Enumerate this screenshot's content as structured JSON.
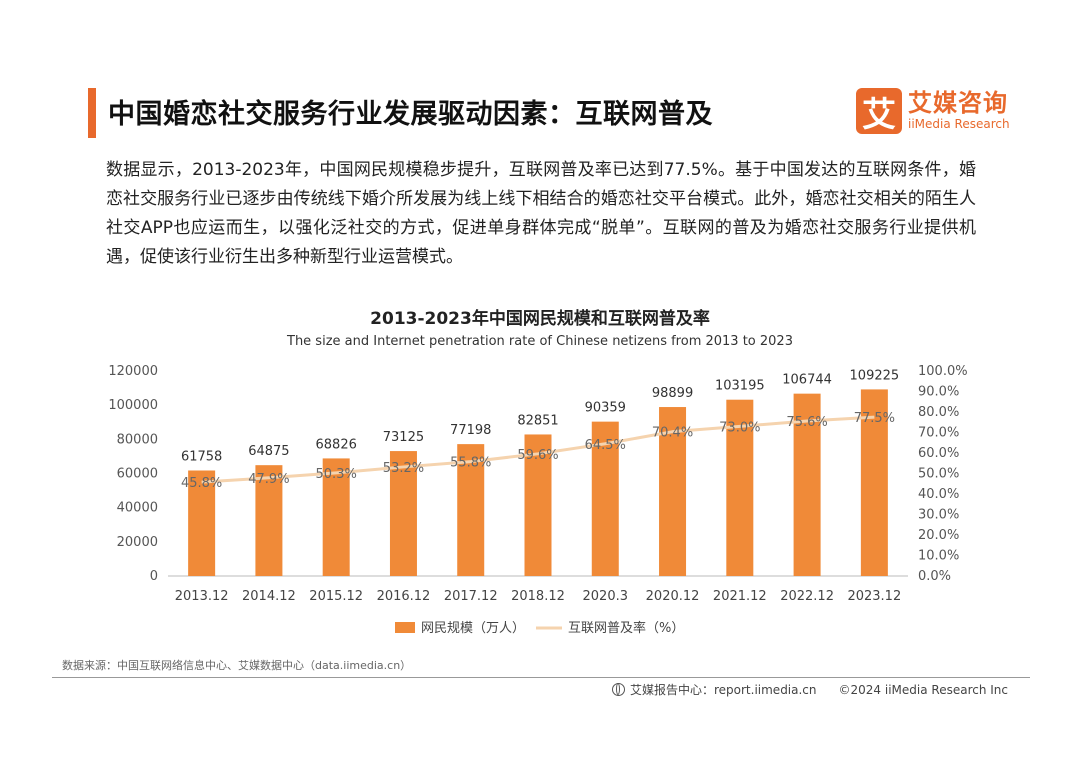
{
  "header": {
    "title": "中国婚恋社交服务行业发展驱动因素：互联网普及",
    "logo_mark": "艾",
    "logo_cn": "艾媒咨询",
    "logo_en": "iiMedia Research"
  },
  "body_text": "数据显示，2013-2023年，中国网民规模稳步提升，互联网普及率已达到77.5%。基于中国发达的互联网条件，婚恋社交服务行业已逐步由传统线下婚介所发展为线上线下相结合的婚恋社交平台模式。此外，婚恋社交相关的陌生人社交APP也应运而生，以强化泛社交的方式，促进单身群体完成“脱单”。互联网的普及为婚恋社交服务行业提供机遇，促使该行业衍生出多种新型行业运营模式。",
  "chart_data": {
    "type": "bar",
    "title": "2013-2023年中国网民规模和互联网普及率",
    "subtitle": "The size and Internet penetration rate of Chinese netizens from 2013 to 2023",
    "categories": [
      "2013.12",
      "2014.12",
      "2015.12",
      "2016.12",
      "2017.12",
      "2018.12",
      "2020.3",
      "2020.12",
      "2021.12",
      "2022.12",
      "2023.12"
    ],
    "series": [
      {
        "name": "网民规模（万人）",
        "type": "bar",
        "axis": "left",
        "color": "#f08a38",
        "values": [
          61758,
          64875,
          68826,
          73125,
          77198,
          82851,
          90359,
          98899,
          103195,
          106744,
          109225
        ]
      },
      {
        "name": "互联网普及率（%）",
        "type": "line",
        "axis": "right",
        "color": "#f5d3ae",
        "values": [
          45.8,
          47.9,
          50.3,
          53.2,
          55.8,
          59.6,
          64.5,
          70.4,
          73.0,
          75.6,
          77.5
        ]
      }
    ],
    "y_left": {
      "min": 0,
      "max": 120000,
      "ticks": [
        "0",
        "20000",
        "40000",
        "60000",
        "80000",
        "100000",
        "120000"
      ]
    },
    "y_right": {
      "min": 0,
      "max": 100,
      "ticks": [
        "0.0%",
        "10.0%",
        "20.0%",
        "30.0%",
        "40.0%",
        "50.0%",
        "60.0%",
        "70.0%",
        "80.0%",
        "90.0%",
        "100.0%"
      ]
    },
    "legend": {
      "position": "bottom",
      "items": [
        "网民规模（万人）",
        "互联网普及率（%）"
      ]
    }
  },
  "footer": {
    "source": "数据来源：中国互联网络信息中心、艾媒数据中心（data.iimedia.cn）",
    "report_center": "艾媒报告中心：report.iimedia.cn",
    "copyright": "©2024  iiMedia Research Inc"
  }
}
